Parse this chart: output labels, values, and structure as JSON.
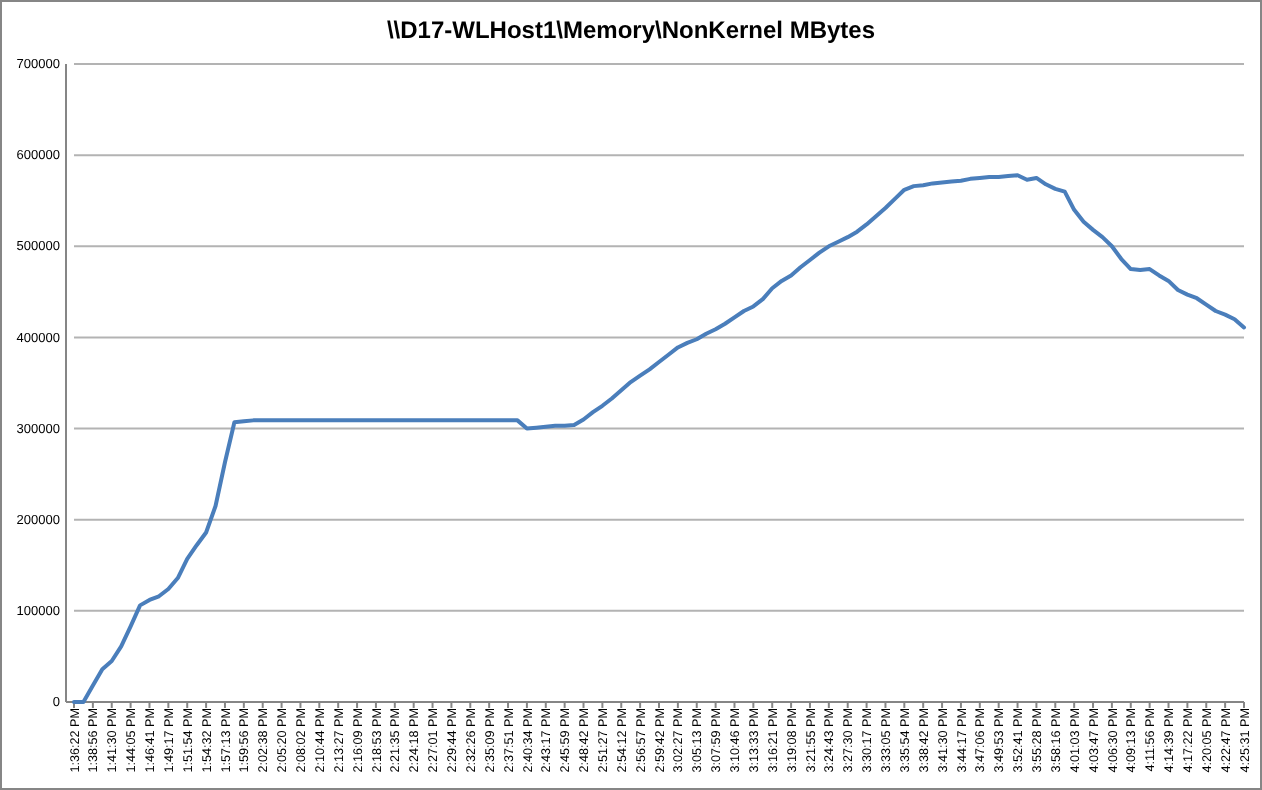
{
  "chart_data": {
    "type": "line",
    "title": "\\\\D17-WLHost1\\Memory\\NonKernel MBytes",
    "categories": [
      "1:36:22 PM",
      null,
      "1:38:56 PM",
      null,
      "1:41:30 PM",
      null,
      "1:44:05 PM",
      null,
      "1:46:41 PM",
      null,
      "1:49:17 PM",
      null,
      "1:51:54 PM",
      null,
      "1:54:32 PM",
      null,
      "1:57:13 PM",
      null,
      "1:59:56 PM",
      null,
      "2:02:38 PM",
      null,
      "2:05:20 PM",
      null,
      "2:08:02 PM",
      null,
      "2:10:44 PM",
      null,
      "2:13:27 PM",
      null,
      "2:16:09 PM",
      null,
      "2:18:53 PM",
      null,
      "2:21:35 PM",
      null,
      "2:24:18 PM",
      null,
      "2:27:01 PM",
      null,
      "2:29:44 PM",
      null,
      "2:32:26 PM",
      null,
      "2:35:09 PM",
      null,
      "2:37:51 PM",
      null,
      "2:40:34 PM",
      null,
      "2:43:17 PM",
      null,
      "2:45:59 PM",
      null,
      "2:48:42 PM",
      null,
      "2:51:27 PM",
      null,
      "2:54:12 PM",
      null,
      "2:56:57 PM",
      null,
      "2:59:42 PM",
      null,
      "3:02:27 PM",
      null,
      "3:05:13 PM",
      null,
      "3:07:59 PM",
      null,
      "3:10:46 PM",
      null,
      "3:13:33 PM",
      null,
      "3:16:21 PM",
      null,
      "3:19:08 PM",
      null,
      "3:21:55 PM",
      null,
      "3:24:43 PM",
      null,
      "3:27:30 PM",
      null,
      "3:30:17 PM",
      null,
      "3:33:05 PM",
      null,
      "3:35:54 PM",
      null,
      "3:38:42 PM",
      null,
      "3:41:30 PM",
      null,
      "3:44:17 PM",
      null,
      "3:47:06 PM",
      null,
      "3:49:53 PM",
      null,
      "3:52:41 PM",
      null,
      "3:55:28 PM",
      null,
      "3:58:16 PM",
      null,
      "4:01:03 PM",
      null,
      "4:03:47 PM",
      null,
      "4:06:30 PM",
      null,
      "4:09:13 PM",
      null,
      "4:11:56 PM",
      null,
      "4:14:39 PM",
      null,
      "4:17:22 PM",
      null,
      "4:20:05 PM",
      null,
      "4:22:47 PM",
      null,
      "4:25:31 PM"
    ],
    "series": [
      {
        "color": "#4a7ebb",
        "values": [
          0,
          0,
          18000,
          36000,
          45000,
          61000,
          83000,
          106000,
          112000,
          116000,
          124000,
          136000,
          157000,
          172000,
          186000,
          215000,
          263000,
          307000,
          308000,
          309000,
          309000,
          309000,
          309000,
          309000,
          309000,
          309000,
          309000,
          309000,
          309000,
          309000,
          309000,
          309000,
          309000,
          309000,
          309000,
          309000,
          309000,
          309000,
          309000,
          309000,
          309000,
          309000,
          309000,
          309000,
          309000,
          309000,
          309000,
          309000,
          300000,
          301000,
          302000,
          303000,
          303000,
          304000,
          310000,
          318000,
          325000,
          333000,
          342000,
          351000,
          358000,
          365000,
          373000,
          381000,
          389000,
          394000,
          398000,
          404000,
          409000,
          415000,
          422000,
          429000,
          434000,
          442000,
          454000,
          462000,
          468000,
          477000,
          485000,
          493000,
          500000,
          505000,
          510000,
          516000,
          524000,
          533000,
          542000,
          552000,
          562000,
          566000,
          567000,
          569000,
          570000,
          571000,
          572000,
          574000,
          575000,
          576000,
          576000,
          577000,
          578000,
          573000,
          575000,
          568000,
          563000,
          560000,
          540000,
          527000,
          518000,
          510000,
          500000,
          486000,
          475000,
          474000,
          475000,
          468000,
          462000,
          452000,
          447000,
          443000,
          436000,
          429000,
          425000,
          420000,
          411000
        ]
      }
    ],
    "ylim": [
      0,
      700000
    ],
    "yticks": [
      0,
      100000,
      200000,
      300000,
      400000,
      500000,
      600000,
      700000
    ],
    "grid": "y",
    "marker": "none",
    "line_style": "solid"
  }
}
